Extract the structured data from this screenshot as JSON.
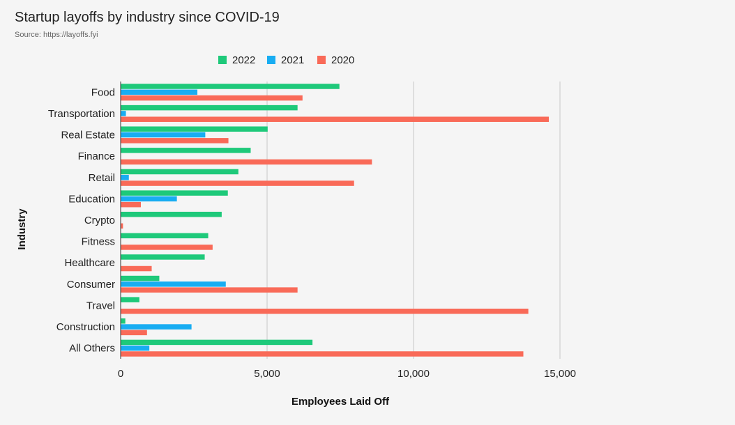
{
  "chart_data": {
    "type": "bar",
    "orientation": "horizontal",
    "title": "Startup layoffs by industry since COVID-19",
    "subtitle": "Source: https://layoffs.fyi",
    "xlabel": "Employees Laid Off",
    "ylabel": "Industry",
    "xlim": [
      0,
      15000
    ],
    "xticks": [
      0,
      5000,
      10000,
      15000
    ],
    "xtick_labels": [
      "0",
      "5,000",
      "10,000",
      "15,000"
    ],
    "grid": true,
    "legend_position": "top",
    "categories": [
      "Food",
      "Transportation",
      "Real Estate",
      "Finance",
      "Retail",
      "Education",
      "Crypto",
      "Fitness",
      "Healthcare",
      "Consumer",
      "Travel",
      "Construction",
      "All Others"
    ],
    "series": [
      {
        "name": "2022",
        "color": "#1ec97a",
        "values": [
          7470,
          6040,
          5020,
          4440,
          4020,
          3660,
          3450,
          2990,
          2870,
          1320,
          640,
          160,
          6550
        ]
      },
      {
        "name": "2021",
        "color": "#18adf2",
        "values": [
          2620,
          180,
          2890,
          0,
          280,
          1920,
          0,
          0,
          0,
          3590,
          0,
          2420,
          980
        ]
      },
      {
        "name": "2020",
        "color": "#f96a58",
        "values": [
          6210,
          14620,
          3680,
          8580,
          7970,
          690,
          80,
          3140,
          1060,
          6040,
          13920,
          900,
          13750
        ]
      }
    ]
  }
}
